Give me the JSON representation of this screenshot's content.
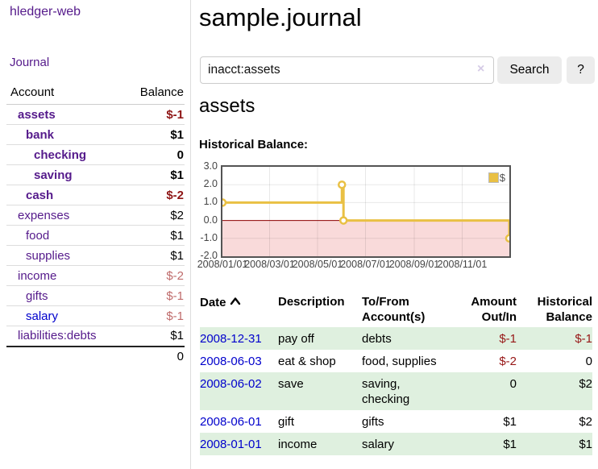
{
  "app": {
    "title": "hledger-web"
  },
  "sidebar": {
    "nav_journal": "Journal",
    "accounts_table": {
      "headers": {
        "account": "Account",
        "balance": "Balance"
      },
      "rows": [
        {
          "label": "assets",
          "depth": 1,
          "bold": true,
          "balance": "$-1",
          "balance_style": "neg-strong"
        },
        {
          "label": "bank",
          "depth": 2,
          "bold": true,
          "balance": "$1",
          "balance_style": ""
        },
        {
          "label": "checking",
          "depth": 3,
          "bold": true,
          "balance": "0",
          "balance_style": ""
        },
        {
          "label": "saving",
          "depth": 3,
          "bold": true,
          "balance": "$1",
          "balance_style": ""
        },
        {
          "label": "cash",
          "depth": 2,
          "bold": true,
          "balance": "$-2",
          "balance_style": "neg-strong"
        },
        {
          "label": "expenses",
          "depth": 1,
          "bold": false,
          "balance": "$2",
          "balance_style": ""
        },
        {
          "label": "food",
          "depth": 2,
          "bold": false,
          "balance": "$1",
          "balance_style": ""
        },
        {
          "label": "supplies",
          "depth": 2,
          "bold": false,
          "balance": "$1",
          "balance_style": ""
        },
        {
          "label": "income",
          "depth": 1,
          "bold": false,
          "balance": "$-2",
          "balance_style": "neg-light"
        },
        {
          "label": "gifts",
          "depth": 2,
          "bold": false,
          "balance": "$-1",
          "balance_style": "neg-light"
        },
        {
          "label": "salary",
          "depth": 2,
          "bold": false,
          "balance": "$-1",
          "balance_style": "neg-light",
          "link_style": "blue"
        },
        {
          "label": "liabilities:debts",
          "depth": 1,
          "bold": false,
          "balance": "$1",
          "balance_style": ""
        }
      ],
      "total": "0"
    }
  },
  "main": {
    "title": "sample.journal",
    "search": {
      "value": "inacct:assets",
      "clear_icon": "×",
      "button": "Search",
      "help_button": "?"
    },
    "account_heading": "assets",
    "chart_heading": "Historical Balance:"
  },
  "chart_data": {
    "type": "line",
    "title": "Historical Balance:",
    "step": true,
    "series": [
      {
        "name": "$",
        "color": "#e9c044",
        "points": [
          [
            "2008-01-01",
            1
          ],
          [
            "2008-06-01",
            2
          ],
          [
            "2008-06-03",
            0
          ],
          [
            "2008-12-31",
            -1
          ]
        ]
      }
    ],
    "xlim": [
      "2008-01-01",
      "2008-12-31"
    ],
    "ylim": [
      -2,
      3
    ],
    "x_ticks": [
      "2008/01/01",
      "2008/03/01",
      "2008/05/01",
      "2008/07/01",
      "2008/09/01",
      "2008/11/01"
    ],
    "y_ticks": [
      "3.0",
      "2.0",
      "1.0",
      "0.0",
      "-1.0",
      "-2.0"
    ],
    "grid": true,
    "legend": {
      "label": "$",
      "position": "top-right"
    },
    "negative_region_color": "#f9dada",
    "zero_line_color": "#8b0000"
  },
  "register_table": {
    "headers": {
      "date": "Date",
      "description": "Description",
      "accounts": "To/From Account(s)",
      "amount": "Amount Out/In",
      "balance": "Historical Balance"
    },
    "sort": {
      "column": "date",
      "direction": "ascending"
    },
    "rows": [
      {
        "date": "2008-12-31",
        "description": "pay off",
        "accounts": "debts",
        "amount": "$-1",
        "amount_neg": true,
        "balance": "$-1",
        "balance_neg": true
      },
      {
        "date": "2008-06-03",
        "description": "eat & shop",
        "accounts": "food, supplies",
        "amount": "$-2",
        "amount_neg": true,
        "balance": "0",
        "balance_neg": false
      },
      {
        "date": "2008-06-02",
        "description": "save",
        "accounts": "saving, checking",
        "amount": "0",
        "amount_neg": false,
        "balance": "$2",
        "balance_neg": false
      },
      {
        "date": "2008-06-01",
        "description": "gift",
        "accounts": "gifts",
        "amount": "$1",
        "amount_neg": false,
        "balance": "$2",
        "balance_neg": false
      },
      {
        "date": "2008-01-01",
        "description": "income",
        "accounts": "salary",
        "amount": "$1",
        "amount_neg": false,
        "balance": "$1",
        "balance_neg": false
      }
    ]
  },
  "colors": {
    "link_purple": "#551a8b",
    "link_blue": "#0000cc",
    "negative_strong": "#8e1515",
    "negative_light": "#bf6b6b",
    "table_negative": "#971717",
    "row_green": "#dff0df",
    "chart_line": "#e9c044",
    "chart_negative_bg": "#f9dada",
    "chart_zero_line": "#8b0000",
    "button_bg": "#ececec"
  }
}
